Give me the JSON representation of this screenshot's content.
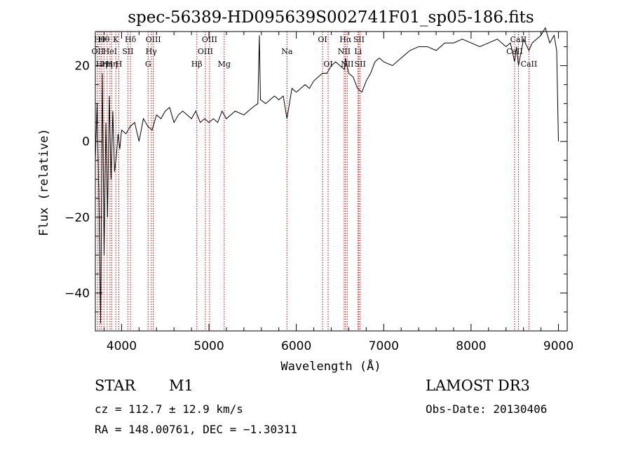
{
  "chart_data": {
    "type": "line",
    "title": "spec-56389-HD095639S002741F01_sp05-186.fits",
    "xlabel": "Wavelength (Å)",
    "ylabel": "Flux (relative)",
    "xlim": [
      3700,
      9100
    ],
    "ylim": [
      -50,
      29
    ],
    "xticks": [
      4000,
      5000,
      6000,
      7000,
      8000,
      9000
    ],
    "xtick_labels": [
      "4000",
      "5000",
      "6000",
      "7000",
      "8000",
      "9000"
    ],
    "yticks": [
      -40,
      -20,
      0,
      20
    ],
    "ytick_labels": [
      "−40",
      "−20",
      "0",
      "20"
    ],
    "grid": false,
    "line_color": "#000000",
    "marker_color": "#cc0000",
    "series": [
      {
        "x": [
          3700,
          3720,
          3740,
          3760,
          3780,
          3800,
          3820,
          3840,
          3860,
          3880,
          3900,
          3920,
          3940,
          3960,
          3980,
          4000,
          4050,
          4100,
          4150,
          4200,
          4250,
          4300,
          4350,
          4400,
          4450,
          4500,
          4550,
          4600,
          4650,
          4700,
          4750,
          4800,
          4850,
          4900,
          4950,
          5000,
          5050,
          5100,
          5150,
          5200,
          5300,
          5400,
          5500,
          5560,
          5577,
          5590,
          5650,
          5700,
          5750,
          5800,
          5850,
          5893,
          5950,
          6000,
          6050,
          6100,
          6150,
          6200,
          6250,
          6300,
          6350,
          6400,
          6450,
          6500,
          6550,
          6563,
          6600,
          6650,
          6700,
          6750,
          6800,
          6850,
          6900,
          6950,
          7000,
          7100,
          7200,
          7300,
          7400,
          7500,
          7600,
          7700,
          7800,
          7900,
          8000,
          8100,
          8200,
          8300,
          8400,
          8450,
          8498,
          8520,
          8542,
          8600,
          8662,
          8700,
          8750,
          8800,
          8850,
          8900,
          8950,
          8980,
          9000
        ],
        "y": [
          -5,
          10,
          -15,
          -48,
          18,
          -30,
          5,
          -20,
          12,
          -10,
          8,
          -8,
          -4,
          2,
          -2,
          3,
          2,
          4,
          5,
          0,
          6,
          4,
          3,
          7,
          6,
          8,
          9,
          5,
          7,
          8,
          7,
          6,
          8,
          5,
          6,
          5,
          6,
          5,
          8,
          6,
          8,
          7,
          9,
          10,
          28,
          11,
          10,
          11,
          12,
          11,
          12,
          6,
          14,
          13,
          14,
          15,
          14,
          16,
          17,
          18,
          18,
          20,
          21,
          20,
          19,
          22,
          18,
          17,
          14,
          13,
          16,
          18,
          21,
          22,
          21,
          20,
          22,
          24,
          25,
          25,
          24,
          26,
          26,
          27,
          26,
          25,
          26,
          27,
          25,
          26,
          21,
          25,
          20,
          27,
          24,
          26,
          27,
          28,
          30,
          26,
          28,
          24,
          0
        ]
      }
    ],
    "line_markers": [
      {
        "x": 3727,
        "label": "OII",
        "row": 1
      },
      {
        "x": 3750,
        "label": "Hθ",
        "row": 0
      },
      {
        "x": 3771,
        "label": "Hη",
        "row": 2
      },
      {
        "x": 3798,
        "label": "Hθ",
        "row": 0
      },
      {
        "x": 3835,
        "label": "Hη",
        "row": 2
      },
      {
        "x": 3868,
        "label": "HeI",
        "row": 1
      },
      {
        "x": 3889,
        "label": "Hη",
        "row": 2
      },
      {
        "x": 3934,
        "label": "K",
        "row": 0
      },
      {
        "x": 3969,
        "label": "H",
        "row": 2
      },
      {
        "x": 4072,
        "label": "SII",
        "row": 1
      },
      {
        "x": 4102,
        "label": "Hδ",
        "row": 0
      },
      {
        "x": 4304,
        "label": "G",
        "row": 2
      },
      {
        "x": 4340,
        "label": "Hγ",
        "row": 1
      },
      {
        "x": 4363,
        "label": "OIII",
        "row": 0
      },
      {
        "x": 4861,
        "label": "Hβ",
        "row": 2
      },
      {
        "x": 4959,
        "label": "OIII",
        "row": 1
      },
      {
        "x": 5007,
        "label": "OIII",
        "row": 0
      },
      {
        "x": 5175,
        "label": "Mg",
        "row": 2
      },
      {
        "x": 5893,
        "label": "Na",
        "row": 1
      },
      {
        "x": 6300,
        "label": "OI",
        "row": 0
      },
      {
        "x": 6364,
        "label": "OI",
        "row": 2
      },
      {
        "x": 6548,
        "label": "NII",
        "row": 1
      },
      {
        "x": 6563,
        "label": "Hα",
        "row": 0
      },
      {
        "x": 6583,
        "label": "NII",
        "row": 2
      },
      {
        "x": 6707,
        "label": "Li",
        "row": 1
      },
      {
        "x": 6716,
        "label": "SII",
        "row": 0
      },
      {
        "x": 6731,
        "label": "SII",
        "row": 2
      },
      {
        "x": 8498,
        "label": "CaII",
        "row": 1
      },
      {
        "x": 8542,
        "label": "CaII",
        "row": 0
      },
      {
        "x": 8662,
        "label": "CaII",
        "row": 2
      }
    ]
  },
  "info": {
    "class": "STAR",
    "subclass": "M1",
    "survey": "LAMOST DR3",
    "cz": "cz = 112.7 ± 12.9 km/s",
    "obs_date": "Obs-Date: 20130406",
    "coords": "RA = 148.00761, DEC =  −1.30311"
  }
}
